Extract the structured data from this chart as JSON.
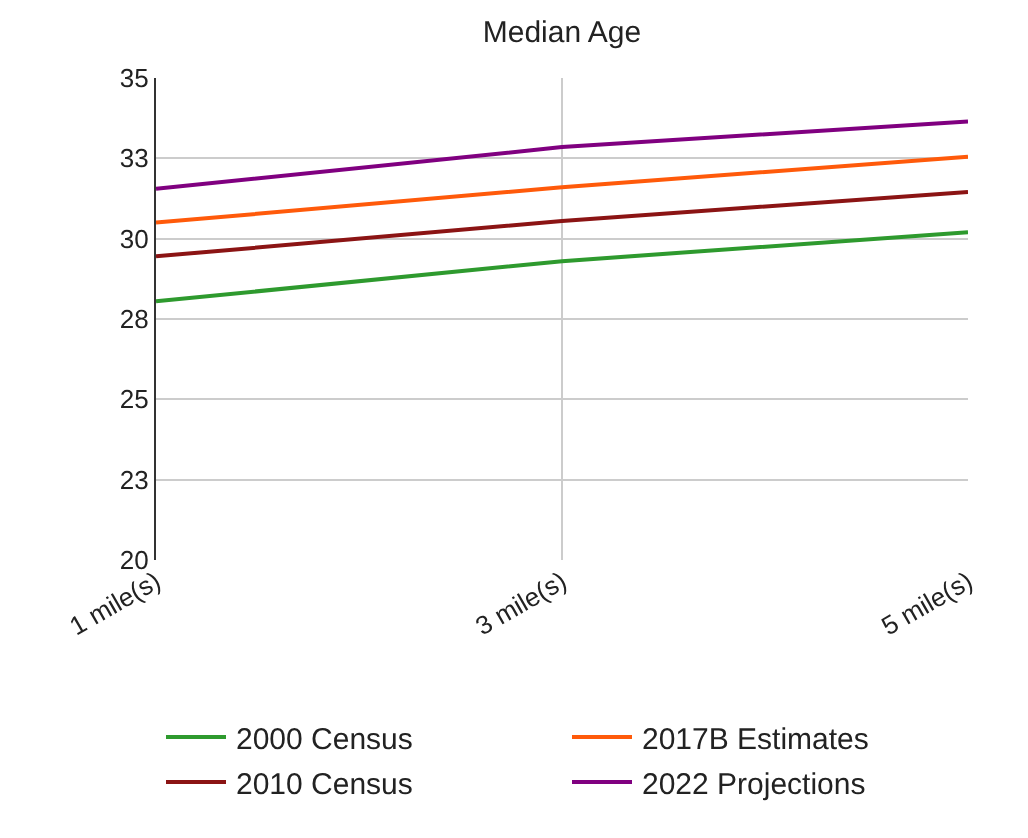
{
  "chart_data": {
    "type": "line",
    "title": "Median Age",
    "categories": [
      "1 mile(s)",
      "3 mile(s)",
      "5 mile(s)"
    ],
    "series": [
      {
        "name": "2000 Census",
        "color": "#2e9a2e",
        "values": [
          28.05,
          29.3,
          30.2
        ]
      },
      {
        "name": "2010 Census",
        "color": "#8b1414",
        "values": [
          29.45,
          30.55,
          31.45
        ]
      },
      {
        "name": "2017B Estimates",
        "color": "#ff5a0a",
        "values": [
          30.5,
          31.6,
          32.55
        ]
      },
      {
        "name": "2022 Projections",
        "color": "#800080",
        "values": [
          31.55,
          32.85,
          33.65
        ]
      }
    ],
    "ylim": [
      20,
      35
    ],
    "yticks": [
      20,
      {
        "value": 22.5,
        "label": "23"
      },
      25,
      {
        "value": 27.5,
        "label": "28"
      },
      30,
      {
        "value": 32.5,
        "label": "33"
      },
      35
    ],
    "grid": true,
    "legend": "bottom",
    "marker": "none",
    "line_style": "solid"
  }
}
